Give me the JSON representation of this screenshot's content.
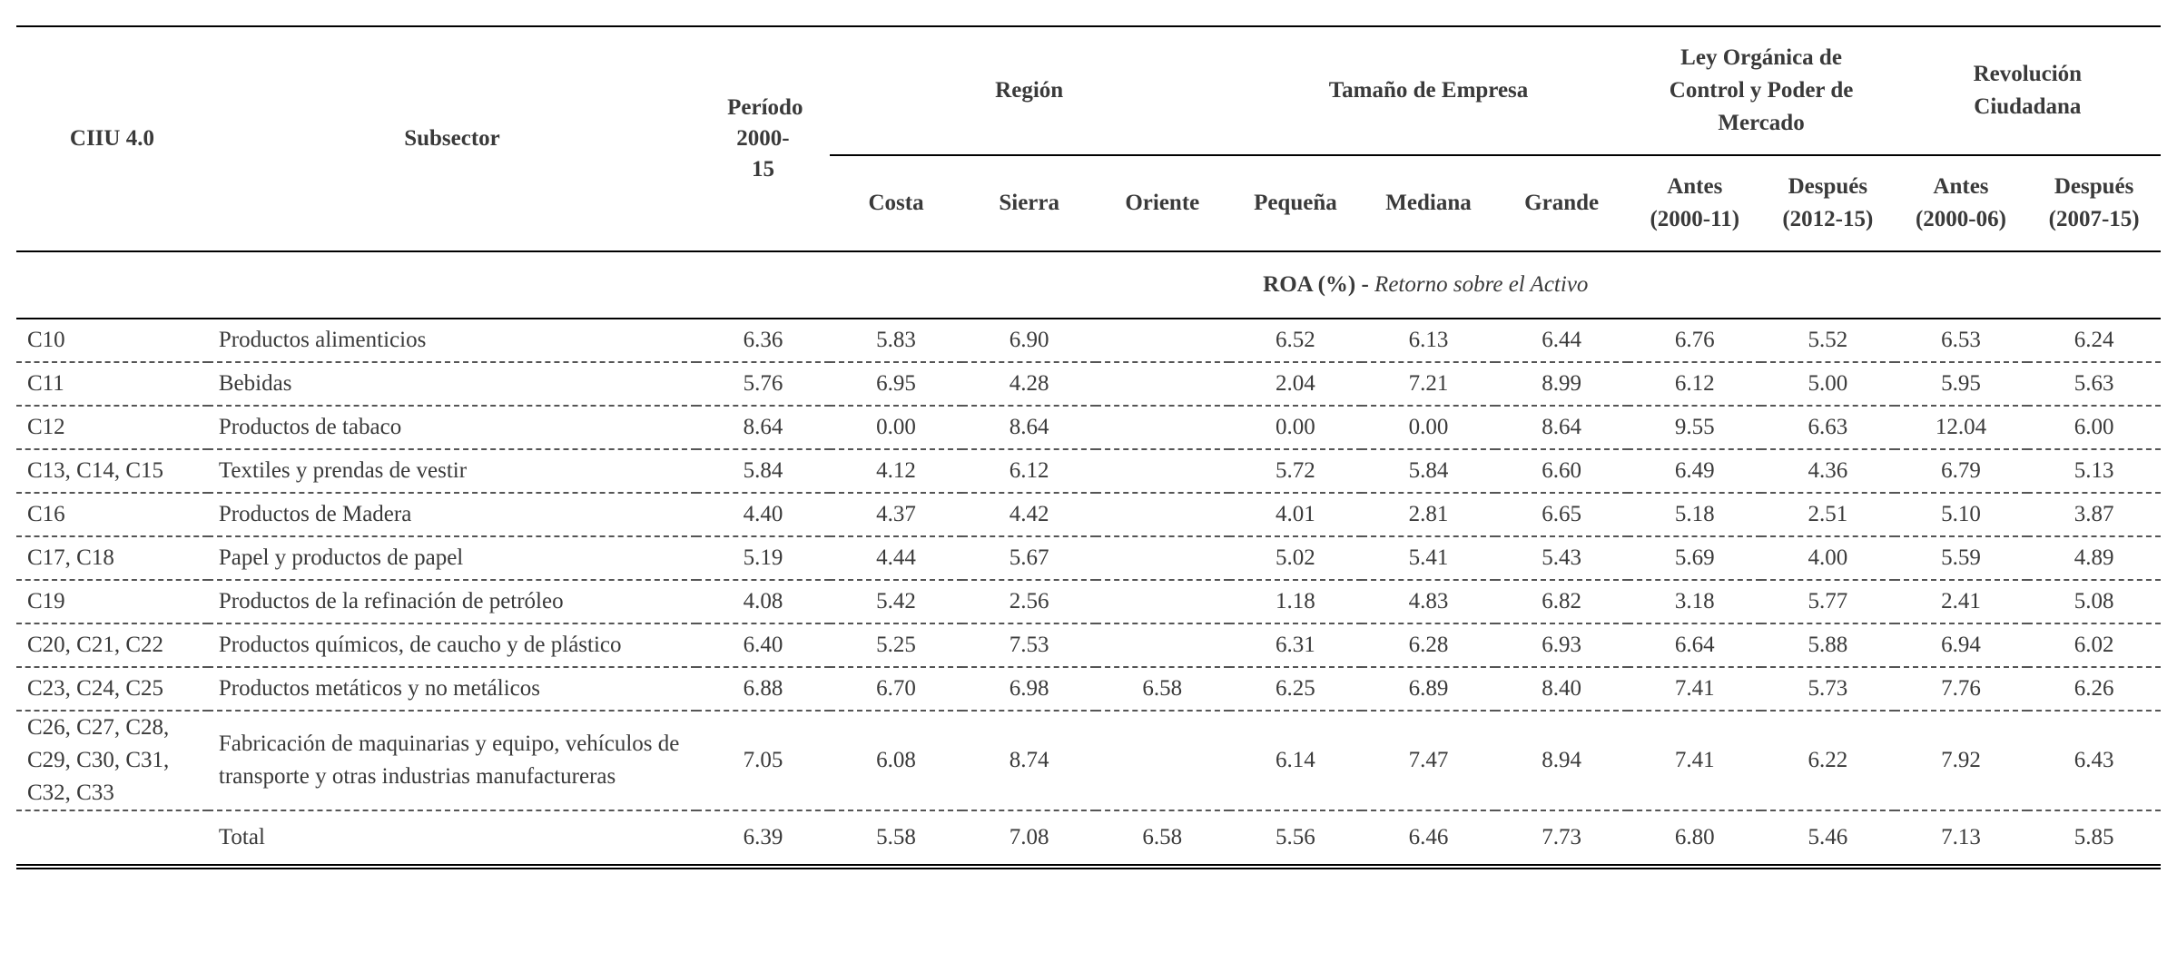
{
  "header": {
    "ciiu": "CIIU 4.0",
    "subsector": "Subsector",
    "periodo": "Período 2000-15",
    "region": {
      "label": "Región",
      "cols": [
        "Costa",
        "Sierra",
        "Oriente"
      ]
    },
    "tamano": {
      "label": "Tamaño de Empresa",
      "cols": [
        "Pequeña",
        "Mediana",
        "Grande"
      ]
    },
    "ley": {
      "label": "Ley Orgánica de Control y Poder de Mercado",
      "cols": [
        "Antes (2000-11)",
        "Después (2012-15)"
      ]
    },
    "revolucion": {
      "label": "Revolución Ciudadana",
      "cols": [
        "Antes (2000-06)",
        "Después (2007-15)"
      ]
    }
  },
  "section": {
    "bold": "ROA (%) -",
    "italic": "Retorno sobre el Activo"
  },
  "rows": [
    {
      "code": "C10",
      "sub": "Productos alimenticios",
      "v": [
        "6.36",
        "5.83",
        "6.90",
        "",
        "6.52",
        "6.13",
        "6.44",
        "6.76",
        "5.52",
        "6.53",
        "6.24"
      ]
    },
    {
      "code": "C11",
      "sub": "Bebidas",
      "v": [
        "5.76",
        "6.95",
        "4.28",
        "",
        "2.04",
        "7.21",
        "8.99",
        "6.12",
        "5.00",
        "5.95",
        "5.63"
      ]
    },
    {
      "code": "C12",
      "sub": "Productos de tabaco",
      "v": [
        "8.64",
        "0.00",
        "8.64",
        "",
        "0.00",
        "0.00",
        "8.64",
        "9.55",
        "6.63",
        "12.04",
        "6.00"
      ]
    },
    {
      "code": "C13, C14, C15",
      "sub": "Textiles y prendas de vestir",
      "v": [
        "5.84",
        "4.12",
        "6.12",
        "",
        "5.72",
        "5.84",
        "6.60",
        "6.49",
        "4.36",
        "6.79",
        "5.13"
      ]
    },
    {
      "code": "C16",
      "sub": "Productos de Madera",
      "v": [
        "4.40",
        "4.37",
        "4.42",
        "",
        "4.01",
        "2.81",
        "6.65",
        "5.18",
        "2.51",
        "5.10",
        "3.87"
      ]
    },
    {
      "code": "C17, C18",
      "sub": "Papel y productos de papel",
      "v": [
        "5.19",
        "4.44",
        "5.67",
        "",
        "5.02",
        "5.41",
        "5.43",
        "5.69",
        "4.00",
        "5.59",
        "4.89"
      ]
    },
    {
      "code": "C19",
      "sub": "Productos de la refinación de petróleo",
      "v": [
        "4.08",
        "5.42",
        "2.56",
        "",
        "1.18",
        "4.83",
        "6.82",
        "3.18",
        "5.77",
        "2.41",
        "5.08"
      ]
    },
    {
      "code": "C20, C21, C22",
      "sub": "Productos químicos, de caucho y de plástico",
      "v": [
        "6.40",
        "5.25",
        "7.53",
        "",
        "6.31",
        "6.28",
        "6.93",
        "6.64",
        "5.88",
        "6.94",
        "6.02"
      ]
    },
    {
      "code": "C23, C24, C25",
      "sub": "Productos metáticos y no metálicos",
      "v": [
        "6.88",
        "6.70",
        "6.98",
        "6.58",
        "6.25",
        "6.89",
        "8.40",
        "7.41",
        "5.73",
        "7.76",
        "6.26"
      ]
    },
    {
      "code": "C26, C27, C28, C29, C30, C31, C32, C33",
      "sub": "Fabricación de maquinarias y equipo, vehículos de transporte y otras industrias manufactureras",
      "v": [
        "7.05",
        "6.08",
        "8.74",
        "",
        "6.14",
        "7.47",
        "8.94",
        "7.41",
        "6.22",
        "7.92",
        "6.43"
      ]
    }
  ],
  "total": {
    "code": "",
    "sub": "Total",
    "v": [
      "6.39",
      "5.58",
      "7.08",
      "6.58",
      "5.56",
      "6.46",
      "7.73",
      "6.80",
      "5.46",
      "7.13",
      "5.85"
    ]
  }
}
